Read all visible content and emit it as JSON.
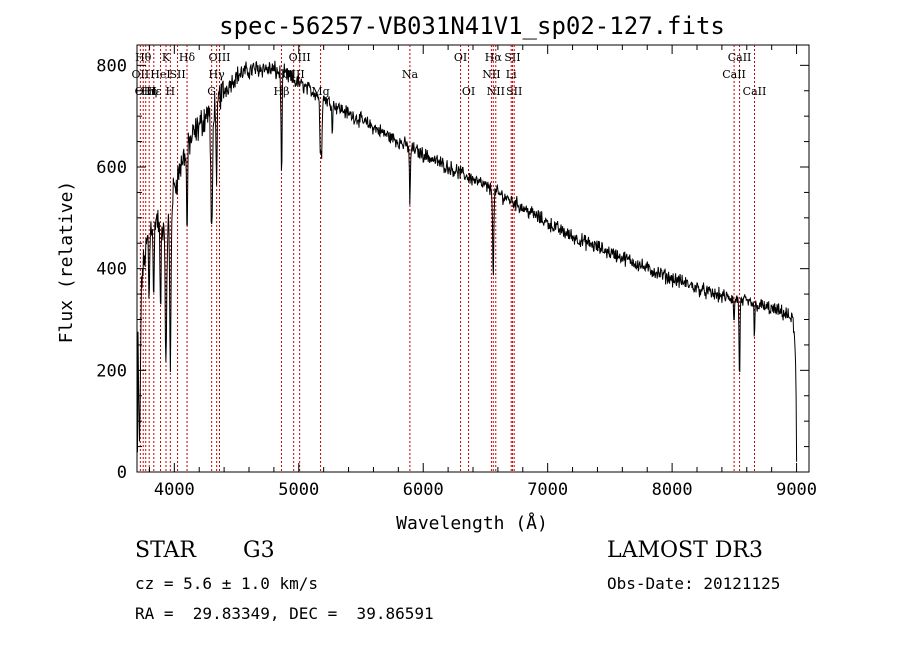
{
  "chart_data": {
    "type": "line",
    "title": "spec-56257-VB031N41V1_sp02-127.fits",
    "xlabel": "Wavelength (Å)",
    "ylabel": "Flux (relative)",
    "xlim": [
      3700,
      9100
    ],
    "ylim": [
      0,
      840
    ],
    "xticks": [
      4000,
      5000,
      6000,
      7000,
      8000,
      9000
    ],
    "yticks": [
      0,
      200,
      400,
      600,
      800
    ],
    "continuum": [
      [
        3700,
        320
      ],
      [
        3760,
        420
      ],
      [
        3800,
        480
      ],
      [
        3850,
        500
      ],
      [
        3900,
        480
      ],
      [
        3950,
        500
      ],
      [
        4000,
        560
      ],
      [
        4100,
        640
      ],
      [
        4200,
        680
      ],
      [
        4300,
        720
      ],
      [
        4400,
        750
      ],
      [
        4500,
        780
      ],
      [
        4600,
        790
      ],
      [
        4700,
        795
      ],
      [
        4800,
        790
      ],
      [
        4900,
        780
      ],
      [
        5000,
        765
      ],
      [
        5100,
        750
      ],
      [
        5200,
        735
      ],
      [
        5300,
        720
      ],
      [
        5400,
        705
      ],
      [
        5500,
        692
      ],
      [
        5600,
        678
      ],
      [
        5700,
        664
      ],
      [
        5800,
        650
      ],
      [
        5900,
        638
      ],
      [
        6000,
        625
      ],
      [
        6100,
        612
      ],
      [
        6200,
        600
      ],
      [
        6300,
        588
      ],
      [
        6400,
        576
      ],
      [
        6500,
        562
      ],
      [
        6600,
        548
      ],
      [
        6700,
        535
      ],
      [
        6800,
        520
      ],
      [
        6900,
        505
      ],
      [
        7000,
        490
      ],
      [
        7100,
        476
      ],
      [
        7200,
        463
      ],
      [
        7300,
        452
      ],
      [
        7400,
        442
      ],
      [
        7500,
        432
      ],
      [
        7600,
        422
      ],
      [
        7700,
        412
      ],
      [
        7800,
        400
      ],
      [
        7900,
        390
      ],
      [
        8000,
        380
      ],
      [
        8100,
        372
      ],
      [
        8200,
        362
      ],
      [
        8300,
        352
      ],
      [
        8400,
        346
      ],
      [
        8500,
        340
      ],
      [
        8600,
        334
      ],
      [
        8700,
        328
      ],
      [
        8800,
        320
      ],
      [
        8900,
        312
      ],
      [
        8970,
        300
      ],
      [
        8985,
        260
      ],
      [
        8995,
        180
      ],
      [
        9000,
        20
      ]
    ],
    "absorption": [
      {
        "x": 3720,
        "depth": 300,
        "width": 10
      },
      {
        "x": 3798,
        "depth": 140,
        "width": 6
      },
      {
        "x": 3835,
        "depth": 160,
        "width": 6
      },
      {
        "x": 3889,
        "depth": 180,
        "width": 6
      },
      {
        "x": 3933,
        "depth": 300,
        "width": 8
      },
      {
        "x": 3968,
        "depth": 320,
        "width": 8
      },
      {
        "x": 4102,
        "depth": 170,
        "width": 6
      },
      {
        "x": 4300,
        "depth": 260,
        "width": 10
      },
      {
        "x": 4340,
        "depth": 200,
        "width": 6
      },
      {
        "x": 4861,
        "depth": 200,
        "width": 6
      },
      {
        "x": 5172,
        "depth": 110,
        "width": 6
      },
      {
        "x": 5183,
        "depth": 110,
        "width": 6
      },
      {
        "x": 5270,
        "depth": 50,
        "width": 5
      },
      {
        "x": 5893,
        "depth": 120,
        "width": 5
      },
      {
        "x": 6563,
        "depth": 180,
        "width": 6
      },
      {
        "x": 8498,
        "depth": 60,
        "width": 4
      },
      {
        "x": 8542,
        "depth": 170,
        "width": 5
      },
      {
        "x": 8662,
        "depth": 80,
        "width": 4
      }
    ],
    "noise_amplitude": 22,
    "lines": [
      {
        "wave": 3727,
        "label": "OII",
        "row": 2
      },
      {
        "wave": 3750,
        "label": "Hθ",
        "row": 1
      },
      {
        "wave": 3770,
        "label": "OIII",
        "row": 3
      },
      {
        "wave": 3798,
        "label": "Hη",
        "row": 3
      },
      {
        "wave": 3835,
        "label": "Hε",
        "row": 3
      },
      {
        "wave": 3889,
        "label": "HeI",
        "row": 2
      },
      {
        "wave": 3933,
        "label": "K",
        "row": 1
      },
      {
        "wave": 3968,
        "label": "H",
        "row": 3
      },
      {
        "wave": 4026,
        "label": "SII",
        "row": 2
      },
      {
        "wave": 4102,
        "label": "Hδ",
        "row": 1
      },
      {
        "wave": 4300,
        "label": "G",
        "row": 3
      },
      {
        "wave": 4340,
        "label": "Hγ",
        "row": 2
      },
      {
        "wave": 4363,
        "label": "OIII",
        "row": 1
      },
      {
        "wave": 4861,
        "label": "Hβ",
        "row": 3
      },
      {
        "wave": 4959,
        "label": "OIII",
        "row": 2
      },
      {
        "wave": 5007,
        "label": "OIII",
        "row": 1
      },
      {
        "wave": 5175,
        "label": "Mg",
        "row": 3
      },
      {
        "wave": 5893,
        "label": "Na",
        "row": 2
      },
      {
        "wave": 6300,
        "label": "OI",
        "row": 1
      },
      {
        "wave": 6364,
        "label": "OI",
        "row": 3
      },
      {
        "wave": 6548,
        "label": "NII",
        "row": 2
      },
      {
        "wave": 6563,
        "label": "Hα",
        "row": 1
      },
      {
        "wave": 6583,
        "label": "NII",
        "row": 3
      },
      {
        "wave": 6707,
        "label": "Li",
        "row": 2
      },
      {
        "wave": 6717,
        "label": "SII",
        "row": 1
      },
      {
        "wave": 6731,
        "label": "SII",
        "row": 3
      },
      {
        "wave": 8498,
        "label": "CaII",
        "row": 2
      },
      {
        "wave": 8542,
        "label": "CaII",
        "row": 1
      },
      {
        "wave": 8662,
        "label": "CaII",
        "row": 3
      }
    ]
  },
  "info": {
    "object_class": "STAR",
    "subclass": "G3",
    "survey": "LAMOST DR3",
    "cz": "cz = 5.6 ± 1.0 km/s",
    "obs_date": "Obs-Date: 20121125",
    "coords": "RA =  29.83349, DEC =  39.86591"
  }
}
